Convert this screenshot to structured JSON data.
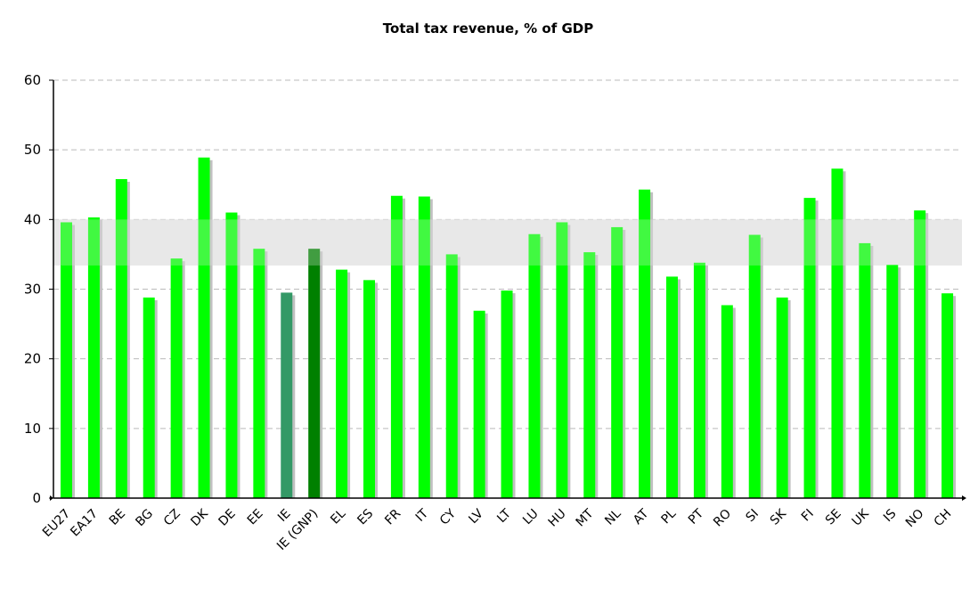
{
  "chart_data": {
    "type": "bar",
    "title": "Total tax revenue, % of GDP",
    "xlabel": "",
    "ylabel": "",
    "ylim": [
      0,
      60
    ],
    "yticks": [
      0,
      10,
      20,
      30,
      40,
      50,
      60
    ],
    "grid": true,
    "reference_band": [
      33.4,
      40
    ],
    "colors": {
      "default": "#00ff00",
      "IE": "#339966",
      "IE (GNP)": "#008000",
      "band": "#e8e8e8",
      "shadow": "#c0c0c0"
    },
    "categories": [
      "EU27",
      "EA17",
      "BE",
      "BG",
      "CZ",
      "DK",
      "DE",
      "EE",
      "IE",
      "IE (GNP)",
      "EL",
      "ES",
      "FR",
      "IT",
      "CY",
      "LV",
      "LT",
      "LU",
      "HU",
      "MT",
      "NL",
      "AT",
      "PL",
      "PT",
      "RO",
      "SI",
      "SK",
      "FI",
      "SE",
      "UK",
      "IS",
      "NO",
      "CH"
    ],
    "values": [
      39.6,
      40.3,
      45.8,
      28.8,
      34.4,
      48.9,
      41.0,
      35.8,
      29.5,
      35.8,
      32.8,
      31.3,
      43.4,
      43.3,
      35.0,
      26.9,
      29.8,
      37.9,
      39.6,
      35.3,
      38.9,
      44.3,
      31.8,
      33.8,
      27.7,
      37.8,
      28.8,
      43.1,
      47.3,
      36.6,
      33.5,
      41.3,
      29.4
    ]
  }
}
